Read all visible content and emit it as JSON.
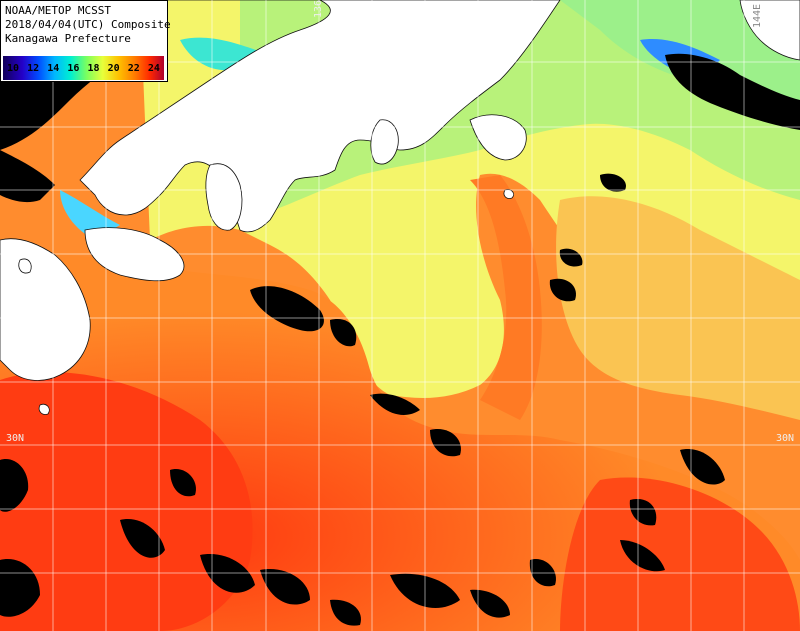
{
  "header": {
    "line1": "NOAA/METOP MCSST",
    "line2": "2018/04/04(UTC) Composite",
    "line3": "Kanagawa Prefecture"
  },
  "legend": {
    "ticks": [
      "10",
      "12",
      "14",
      "16",
      "18",
      "20",
      "22",
      "24"
    ]
  },
  "grid_labels": {
    "lon_136": "136E",
    "lon_144": "144E",
    "lat_30_left": "30N",
    "lat_30_right": "30N"
  },
  "colors": {
    "land": "#ffffff",
    "cloud": "#000000",
    "warm_sst": "#ff5a14",
    "mid_sst": "#ffb43c",
    "cool_sst": "#c8ff6a",
    "coldest_sst": "#3cf0c8"
  }
}
